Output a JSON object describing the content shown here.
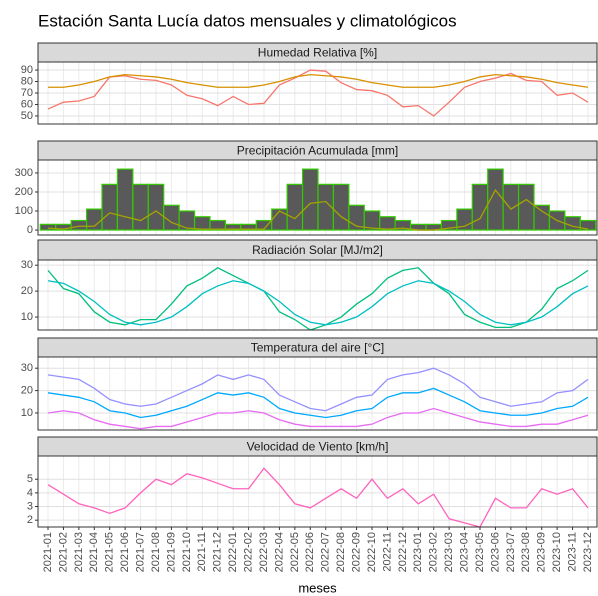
{
  "title": "Estación Santa Lucía datos mensuales y climatológicos",
  "chart_data": [
    {
      "type": "line",
      "title": "Humedad Relativa [%]",
      "ylim": [
        43,
        97
      ],
      "yticks": [
        50,
        60,
        70,
        80,
        90
      ],
      "grid": true,
      "series": [
        {
          "color": "#F8766D",
          "values": [
            56,
            62,
            63,
            67,
            84,
            85,
            82,
            81,
            77,
            68,
            65,
            59,
            67,
            60,
            61,
            77,
            83,
            90,
            89,
            79,
            73,
            72,
            68,
            58,
            59,
            50,
            62,
            75,
            80,
            83,
            87,
            81,
            80,
            68,
            70,
            62
          ]
        },
        {
          "color": "#D89000",
          "values": [
            75,
            75,
            77,
            80,
            84,
            86,
            85,
            84,
            82,
            79,
            77,
            75,
            75,
            75,
            77,
            80,
            84,
            86,
            85,
            84,
            82,
            79,
            77,
            75,
            75,
            75,
            77,
            80,
            84,
            86,
            85,
            84,
            82,
            79,
            77,
            75
          ]
        }
      ]
    },
    {
      "type": "bar",
      "title": "Precipitación Acumulada [mm]",
      "ylim": [
        -26,
        368
      ],
      "yticks": [
        0,
        100,
        200,
        300
      ],
      "grid": true,
      "color": "#595959",
      "edgecolor": "#33CC00",
      "values": [
        30,
        30,
        50,
        110,
        240,
        320,
        240,
        240,
        130,
        100,
        70,
        50,
        30,
        30,
        50,
        110,
        240,
        320,
        240,
        240,
        130,
        100,
        70,
        50,
        30,
        30,
        50,
        110,
        240,
        320,
        240,
        240,
        130,
        100,
        70,
        50
      ],
      "series": [
        {
          "color": "#A3A500",
          "values": [
            10,
            5,
            20,
            20,
            90,
            70,
            50,
            100,
            40,
            10,
            5,
            5,
            5,
            5,
            5,
            100,
            60,
            140,
            150,
            70,
            20,
            10,
            5,
            10,
            0,
            0,
            10,
            20,
            60,
            210,
            110,
            160,
            100,
            50,
            20,
            5
          ]
        }
      ]
    },
    {
      "type": "line",
      "title": "Radiación Solar [MJ/m2]",
      "ylim": [
        5,
        32
      ],
      "yticks": [
        10,
        20,
        30
      ],
      "grid": true,
      "series": [
        {
          "color": "#00BF7D",
          "values": [
            28,
            21,
            19,
            12,
            8,
            7,
            9,
            9,
            15,
            22,
            25,
            29,
            26,
            23,
            20,
            12,
            9,
            5,
            7,
            10,
            15,
            19,
            25,
            28,
            29,
            23,
            19,
            11,
            8,
            6,
            6,
            8,
            13,
            21,
            24,
            28
          ]
        },
        {
          "color": "#00BFC4",
          "values": [
            24,
            23,
            20,
            16,
            11,
            8,
            7,
            8,
            10,
            14,
            19,
            22,
            24,
            23,
            20,
            16,
            11,
            8,
            7,
            8,
            10,
            14,
            19,
            22,
            24,
            23,
            20,
            16,
            11,
            8,
            7,
            8,
            10,
            14,
            19,
            22
          ]
        }
      ]
    },
    {
      "type": "line",
      "title": "Temperatura del aire [°C]",
      "ylim": [
        2.4,
        35
      ],
      "yticks": [
        10,
        20,
        30
      ],
      "grid": true,
      "series": [
        {
          "color": "#9590FF",
          "values": [
            27,
            26,
            25,
            21,
            16,
            14,
            13,
            14,
            17,
            20,
            23,
            27,
            25,
            27,
            25,
            18,
            15,
            12,
            11,
            14,
            17,
            18,
            25,
            27,
            28,
            30,
            27,
            23,
            17,
            15,
            13,
            14,
            15,
            19,
            20,
            25
          ]
        },
        {
          "color": "#00A9FF",
          "values": [
            19,
            18,
            17,
            15,
            11,
            10,
            8,
            9,
            11,
            13,
            16,
            19,
            18,
            19,
            17,
            12,
            10,
            9,
            8,
            9,
            11,
            12,
            17,
            19,
            19,
            21,
            18,
            15,
            11,
            10,
            9,
            9,
            10,
            12,
            13,
            17
          ]
        },
        {
          "color": "#E76BF3",
          "values": [
            10,
            11,
            10,
            7,
            5,
            4,
            3,
            4,
            4,
            6,
            8,
            10,
            10,
            11,
            10,
            7,
            5,
            4,
            4,
            4,
            4,
            5,
            8,
            10,
            10,
            12,
            10,
            8,
            6,
            5,
            4,
            4,
            5,
            5,
            7,
            9
          ]
        }
      ]
    },
    {
      "type": "line",
      "title": "Velocidad de Viento [km/h]",
      "ylim": [
        1.5,
        6.7
      ],
      "yticks": [
        2,
        3,
        4,
        5
      ],
      "grid": true,
      "xlabel": "meses",
      "categories": [
        "2021-01",
        "2021-02",
        "2021-03",
        "2021-04",
        "2021-05",
        "2021-06",
        "2021-07",
        "2021-08",
        "2021-09",
        "2021-10",
        "2021-11",
        "2021-12",
        "2022-01",
        "2022-02",
        "2022-03",
        "2022-04",
        "2022-05",
        "2022-06",
        "2022-07",
        "2022-08",
        "2022-09",
        "2022-10",
        "2022-11",
        "2022-12",
        "2023-01",
        "2023-02",
        "2023-03",
        "2023-04",
        "2023-05",
        "2023-06",
        "2023-07",
        "2023-08",
        "2023-09",
        "2023-10",
        "2023-11",
        "2023-12"
      ],
      "series": [
        {
          "color": "#FF62BC",
          "values": [
            4.6,
            3.9,
            3.2,
            2.9,
            2.5,
            2.9,
            4.0,
            5.0,
            4.6,
            5.4,
            5.1,
            4.7,
            4.3,
            4.3,
            5.8,
            4.6,
            3.2,
            2.9,
            3.6,
            4.3,
            3.6,
            5.0,
            3.6,
            4.3,
            3.2,
            3.9,
            2.1,
            1.8,
            1.5,
            3.6,
            2.9,
            2.9,
            4.3,
            3.9,
            4.3,
            2.9
          ]
        }
      ]
    }
  ]
}
